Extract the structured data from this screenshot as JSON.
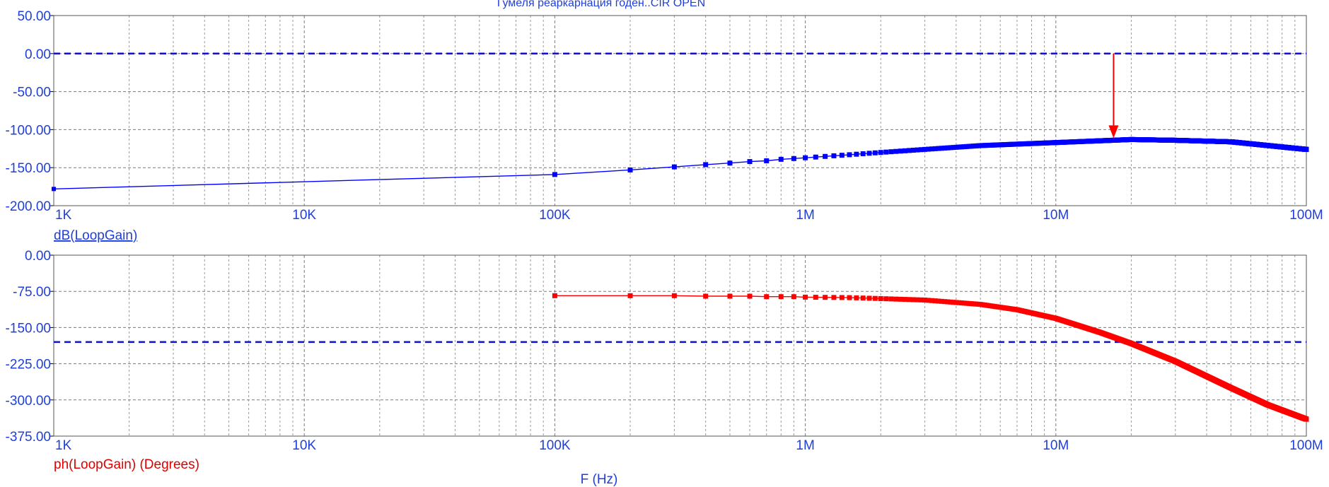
{
  "title": "Гумеля реаркарнация годен..CIR OPEN",
  "x_axis_label": "F (Hz)",
  "colors": {
    "gain": "#0000ff",
    "phase": "#ff0000",
    "axis_text": "#1f3fd8",
    "grid": "#808080",
    "marker": "#ff0000"
  },
  "chart_data": [
    {
      "type": "line",
      "xscale": "log",
      "xlim": [
        1000,
        100000000
      ],
      "ylim": [
        -200,
        50
      ],
      "xticks": [
        1000,
        10000,
        100000,
        1000000,
        10000000,
        100000000
      ],
      "xticklabels": [
        "1K",
        "10K",
        "100K",
        "1M",
        "10M",
        "100M"
      ],
      "yticks": [
        50,
        0,
        -50,
        -100,
        -150,
        -200
      ],
      "yticklabels": [
        "50.00",
        "0.00",
        "-50.00",
        "-100.00",
        "-150.00",
        "-200.00"
      ],
      "reference_line": 0,
      "grid": true,
      "series": [
        {
          "name": "dB(LoopGain)",
          "x": [
            1000,
            100000,
            200000,
            300000,
            400000,
            500000,
            600000,
            700000,
            800000,
            900000,
            1000000,
            1500000,
            2000000,
            3000000,
            5000000,
            10000000,
            20000000,
            30000000,
            50000000,
            100000000
          ],
          "y": [
            -178,
            -159,
            -153,
            -149,
            -146,
            -144,
            -142,
            -141,
            -139,
            -138,
            -137,
            -133,
            -130,
            -126,
            -121,
            -117,
            -113,
            -114,
            -116,
            -126
          ]
        }
      ],
      "annotation": {
        "x": 17000000,
        "y_from": 0,
        "y_to": -113
      }
    },
    {
      "type": "line",
      "xscale": "log",
      "xlim": [
        1000,
        100000000
      ],
      "ylim": [
        -375,
        0
      ],
      "xticks": [
        1000,
        10000,
        100000,
        1000000,
        10000000,
        100000000
      ],
      "xticklabels": [
        "1K",
        "10K",
        "100K",
        "1M",
        "10M",
        "100M"
      ],
      "yticks": [
        0,
        -75,
        -150,
        -225,
        -300,
        -375
      ],
      "yticklabels": [
        "0.00",
        "-75.00",
        "-150.00",
        "-225.00",
        "-300.00",
        "-375.00"
      ],
      "reference_line": -180,
      "grid": true,
      "series": [
        {
          "name": "ph(LoopGain) (Degrees)",
          "x": [
            100000,
            200000,
            300000,
            400000,
            500000,
            600000,
            700000,
            800000,
            900000,
            1000000,
            1500000,
            2000000,
            3000000,
            5000000,
            7000000,
            10000000,
            15000000,
            20000000,
            30000000,
            50000000,
            70000000,
            100000000
          ],
          "y": [
            -84,
            -84,
            -84,
            -85,
            -85,
            -85,
            -86,
            -86,
            -86,
            -87,
            -88,
            -90,
            -93,
            -102,
            -113,
            -131,
            -160,
            -183,
            -220,
            -275,
            -310,
            -340
          ]
        }
      ]
    }
  ]
}
